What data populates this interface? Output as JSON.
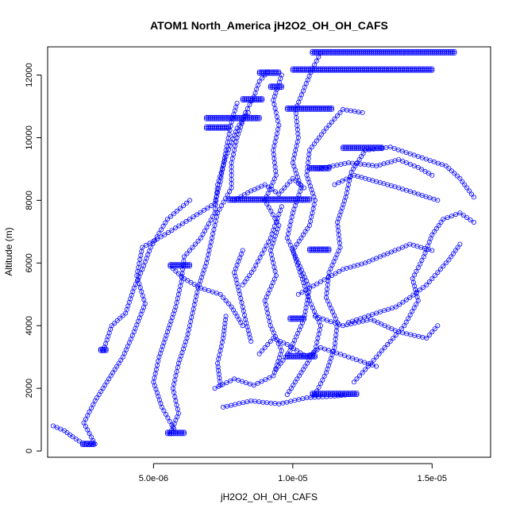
{
  "chart_data": {
    "type": "scatter",
    "title": "ATOM1 North_America jH2O2_OH_OH_CAFS",
    "xlabel": "jH2O2_OH_OH_CAFS",
    "ylabel": "Altitude (m)",
    "xlim": [
      1.2e-06,
      1.71e-05
    ],
    "ylim": [
      -200,
      12900
    ],
    "x_ticks": [
      {
        "value": 5e-06,
        "label": "5.0e-06"
      },
      {
        "value": 1e-05,
        "label": "1.0e-05"
      },
      {
        "value": 1.5e-05,
        "label": "1.5e-05"
      }
    ],
    "y_ticks": [
      {
        "value": 0,
        "label": "0"
      },
      {
        "value": 2000,
        "label": "2000"
      },
      {
        "value": 4000,
        "label": "4000"
      },
      {
        "value": 6000,
        "label": "6000"
      },
      {
        "value": 8000,
        "label": "8000"
      },
      {
        "value": 10000,
        "label": "10000"
      },
      {
        "value": 12000,
        "label": "12000"
      }
    ],
    "marker": "open-circle",
    "color": "#0000ff",
    "connect_points": true,
    "grid": false,
    "profiles": [
      {
        "points": [
          [
            1.4e-06,
            800
          ],
          [
            1.8e-06,
            650
          ],
          [
            2.1e-06,
            450
          ],
          [
            2.45e-06,
            250
          ],
          [
            2.9e-06,
            220
          ],
          [
            2.5e-06,
            900
          ],
          [
            2.9e-06,
            1600
          ],
          [
            3.4e-06,
            2300
          ],
          [
            3.9e-06,
            3000
          ],
          [
            4.3e-06,
            3800
          ],
          [
            4.7e-06,
            4700
          ],
          [
            4.4e-06,
            5600
          ],
          [
            4.6e-06,
            6500
          ],
          [
            5.4e-06,
            6900
          ],
          [
            6.3e-06,
            7400
          ],
          [
            7.2e-06,
            7900
          ],
          [
            7.4e-06,
            8600
          ],
          [
            7.6e-06,
            9600
          ],
          [
            7.8e-06,
            10500
          ],
          [
            8e-06,
            11100
          ]
        ]
      },
      {
        "points": [
          [
            5.6e-06,
            550
          ],
          [
            5.9e-06,
            1200
          ],
          [
            5.7e-06,
            2000
          ],
          [
            5.9e-06,
            2800
          ],
          [
            6.2e-06,
            3600
          ],
          [
            6.4e-06,
            4400
          ],
          [
            6.6e-06,
            5200
          ],
          [
            6.9e-06,
            6000
          ],
          [
            7.1e-06,
            6800
          ],
          [
            7.3e-06,
            7600
          ],
          [
            7.8e-06,
            8400
          ],
          [
            7.8e-06,
            9200
          ],
          [
            8e-06,
            10000
          ],
          [
            8.3e-06,
            10800
          ],
          [
            8.6e-06,
            11300
          ],
          [
            8.8e-06,
            11800
          ],
          [
            9.1e-06,
            12100
          ]
        ]
      },
      {
        "points": [
          [
            5.8e-06,
            600
          ],
          [
            5.3e-06,
            1400
          ],
          [
            5e-06,
            2200
          ],
          [
            5.2e-06,
            3000
          ],
          [
            5.5e-06,
            3800
          ],
          [
            5.8e-06,
            4600
          ],
          [
            6e-06,
            5400
          ],
          [
            6.1e-06,
            6200
          ],
          [
            6.7e-06,
            6800
          ],
          [
            7.2e-06,
            7600
          ],
          [
            7.3e-06,
            8500
          ],
          [
            7.6e-06,
            9400
          ],
          [
            8e-06,
            10300
          ],
          [
            8.4e-06,
            10800
          ]
        ]
      },
      {
        "points": [
          [
            3.2e-06,
            3200
          ],
          [
            3.5e-06,
            4000
          ],
          [
            4e-06,
            4400
          ],
          [
            4.3e-06,
            5200
          ],
          [
            4.6e-06,
            5800
          ],
          [
            4.9e-06,
            6500
          ],
          [
            5.5e-06,
            7400
          ],
          [
            6.3e-06,
            8000
          ]
        ]
      },
      {
        "points": [
          [
            7.2e-06,
            2000
          ],
          [
            7.9e-06,
            2300
          ],
          [
            8.6e-06,
            2100
          ],
          [
            9.3e-06,
            2400
          ],
          [
            9.6e-06,
            3200
          ],
          [
            9.2e-06,
            4000
          ],
          [
            9e-06,
            4800
          ],
          [
            9.4e-06,
            5600
          ],
          [
            9.2e-06,
            6400
          ],
          [
            9.5e-06,
            7200
          ],
          [
            9e-06,
            8000
          ],
          [
            9.4e-06,
            8800
          ],
          [
            9.3e-06,
            9600
          ],
          [
            9.5e-06,
            10400
          ],
          [
            9.3e-06,
            11200
          ],
          [
            9.6e-06,
            12000
          ]
        ]
      },
      {
        "points": [
          [
            9.4e-06,
            2600
          ],
          [
            9.9e-06,
            3200
          ],
          [
            1.04e-05,
            4200
          ],
          [
            1.06e-05,
            5200
          ],
          [
            1.02e-05,
            6000
          ],
          [
            9.8e-06,
            6800
          ],
          [
            1e-05,
            7600
          ],
          [
            1.03e-05,
            8400
          ],
          [
            1e-05,
            9200
          ],
          [
            1.02e-05,
            10000
          ],
          [
            1.01e-05,
            10900
          ],
          [
            1.07e-05,
            12200
          ],
          [
            1.1e-05,
            12700
          ]
        ]
      },
      {
        "points": [
          [
            9.8e-06,
            1800
          ],
          [
            1.03e-05,
            2500
          ],
          [
            1.08e-05,
            3200
          ],
          [
            1.1e-05,
            4000
          ],
          [
            1.06e-05,
            4800
          ],
          [
            1.03e-05,
            5600
          ],
          [
            1e-05,
            6400
          ],
          [
            1.06e-05,
            7200
          ],
          [
            1.08e-05,
            8000
          ],
          [
            1.05e-05,
            8800
          ],
          [
            1.06e-05,
            9600
          ],
          [
            1.12e-05,
            10300
          ],
          [
            1.18e-05,
            10900
          ],
          [
            1.25e-05,
            10800
          ]
        ]
      },
      {
        "points": [
          [
            1.08e-05,
            1800
          ],
          [
            1.12e-05,
            2500
          ],
          [
            1.15e-05,
            3300
          ],
          [
            1.16e-05,
            4100
          ],
          [
            1.12e-05,
            4900
          ],
          [
            1.13e-05,
            5700
          ],
          [
            1.17e-05,
            6500
          ],
          [
            1.16e-05,
            7300
          ],
          [
            1.19e-05,
            8100
          ],
          [
            1.21e-05,
            8900
          ],
          [
            1.26e-05,
            9600
          ],
          [
            1.35e-05,
            9700
          ],
          [
            1.45e-05,
            9400
          ],
          [
            1.55e-05,
            9100
          ],
          [
            1.6e-05,
            8700
          ],
          [
            1.65e-05,
            8100
          ]
        ]
      },
      {
        "points": [
          [
            1.22e-05,
            2200
          ],
          [
            1.28e-05,
            2800
          ],
          [
            1.35e-05,
            3500
          ],
          [
            1.4e-05,
            4000
          ],
          [
            1.45e-05,
            4800
          ],
          [
            1.43e-05,
            5500
          ],
          [
            1.47e-05,
            6200
          ],
          [
            1.5e-05,
            6900
          ],
          [
            1.54e-05,
            7400
          ],
          [
            1.6e-05,
            7600
          ],
          [
            1.65e-05,
            7300
          ]
        ]
      },
      {
        "points": [
          [
            1.2e-05,
            4100
          ],
          [
            1.3e-05,
            4400
          ],
          [
            1.37e-05,
            4600
          ],
          [
            1.42e-05,
            4900
          ],
          [
            1.48e-05,
            5300
          ],
          [
            1.52e-05,
            5700
          ],
          [
            1.56e-05,
            6100
          ],
          [
            1.6e-05,
            6600
          ]
        ]
      },
      {
        "points": [
          [
            1.08e-05,
            4300
          ],
          [
            1.18e-05,
            4000
          ],
          [
            1.28e-05,
            4200
          ],
          [
            1.38e-05,
            3800
          ],
          [
            1.48e-05,
            3600
          ],
          [
            1.52e-05,
            4000
          ]
        ]
      },
      {
        "points": [
          [
            8.8e-06,
            3100
          ],
          [
            9.3e-06,
            3600
          ],
          [
            9.8e-06,
            3400
          ],
          [
            1.05e-05,
            3000
          ],
          [
            1.1e-05,
            3300
          ],
          [
            1.2e-05,
            3000
          ],
          [
            1.3e-05,
            2700
          ]
        ]
      },
      {
        "points": [
          [
            7.5e-06,
            1400
          ],
          [
            8.5e-06,
            1600
          ],
          [
            9.5e-06,
            1500
          ],
          [
            1.05e-05,
            1700
          ],
          [
            1.15e-05,
            1750
          ],
          [
            1.2e-05,
            1800
          ]
        ]
      },
      {
        "points": [
          [
            1.02e-05,
            5000
          ],
          [
            1.1e-05,
            5400
          ],
          [
            1.18e-05,
            5800
          ],
          [
            1.26e-05,
            6000
          ],
          [
            1.34e-05,
            6300
          ],
          [
            1.42e-05,
            6600
          ],
          [
            1.5e-05,
            6400
          ]
        ]
      },
      {
        "points": [
          [
            1.15e-05,
            8500
          ],
          [
            1.22e-05,
            8800
          ],
          [
            1.3e-05,
            8600
          ],
          [
            1.38e-05,
            8400
          ],
          [
            1.45e-05,
            8200
          ],
          [
            1.52e-05,
            8000
          ]
        ]
      },
      {
        "points": [
          [
            1.09e-05,
            9000
          ],
          [
            1.2e-05,
            9200
          ],
          [
            1.3e-05,
            9100
          ],
          [
            1.38e-05,
            9300
          ],
          [
            1.45e-05,
            9050
          ],
          [
            1.5e-05,
            8800
          ]
        ]
      },
      {
        "points": [
          [
            7.9e-06,
            8000
          ],
          [
            8.5e-06,
            8300
          ],
          [
            9e-06,
            8500
          ],
          [
            9.5e-06,
            8200
          ],
          [
            1e-05,
            8700
          ],
          [
            1.04e-05,
            8400
          ]
        ]
      },
      {
        "points": [
          [
            8.2e-06,
            5300
          ],
          [
            8.6e-06,
            5800
          ],
          [
            8.9e-06,
            6300
          ],
          [
            9.2e-06,
            6800
          ],
          [
            9.4e-06,
            7300
          ],
          [
            9.6e-06,
            7800
          ]
        ]
      },
      {
        "points": [
          [
            8.5e-06,
            3500
          ],
          [
            8.3e-06,
            4200
          ],
          [
            8.1e-06,
            5000
          ],
          [
            7.9e-06,
            5700
          ],
          [
            8.2e-06,
            6400
          ]
        ]
      },
      {
        "points": [
          [
            5.6e-06,
            5900
          ],
          [
            6.1e-06,
            5500
          ],
          [
            6.7e-06,
            5200
          ],
          [
            7.4e-06,
            5000
          ],
          [
            7.8e-06,
            4600
          ],
          [
            8.2e-06,
            4000
          ]
        ]
      },
      {
        "points": [
          [
            7.4e-06,
            2100
          ],
          [
            7.3e-06,
            2800
          ],
          [
            7.5e-06,
            3600
          ],
          [
            7.6e-06,
            4300
          ]
        ]
      }
    ],
    "bands": [
      {
        "y": 200,
        "x_from": 2.45e-06,
        "x_to": 2.85e-06
      },
      {
        "y": 550,
        "x_from": 5.5e-06,
        "x_to": 6.1e-06
      },
      {
        "y": 1800,
        "x_from": 1.07e-05,
        "x_to": 1.23e-05
      },
      {
        "y": 3000,
        "x_from": 9.8e-06,
        "x_to": 1.08e-05
      },
      {
        "y": 3200,
        "x_from": 3.1e-06,
        "x_to": 3.3e-06
      },
      {
        "y": 4200,
        "x_from": 9.9e-06,
        "x_to": 1.04e-05
      },
      {
        "y": 5900,
        "x_from": 5.6e-06,
        "x_to": 6.3e-06
      },
      {
        "y": 6400,
        "x_from": 1.06e-05,
        "x_to": 1.13e-05
      },
      {
        "y": 8000,
        "x_from": 7.7e-06,
        "x_to": 1.06e-05
      },
      {
        "y": 9000,
        "x_from": 1.06e-05,
        "x_to": 1.13e-05
      },
      {
        "y": 9650,
        "x_from": 1.18e-05,
        "x_to": 1.32e-05
      },
      {
        "y": 10300,
        "x_from": 6.9e-06,
        "x_to": 7.7e-06
      },
      {
        "y": 10600,
        "x_from": 6.9e-06,
        "x_to": 8.8e-06
      },
      {
        "y": 10900,
        "x_from": 9.8e-06,
        "x_to": 1.14e-05
      },
      {
        "y": 11200,
        "x_from": 8.2e-06,
        "x_to": 8.9e-06
      },
      {
        "y": 11600,
        "x_from": 9.2e-06,
        "x_to": 9.6e-06
      },
      {
        "y": 12050,
        "x_from": 8.8e-06,
        "x_to": 9.5e-06
      },
      {
        "y": 12150,
        "x_from": 1e-05,
        "x_to": 1.5e-05
      },
      {
        "y": 12700,
        "x_from": 1.07e-05,
        "x_to": 1.58e-05
      }
    ]
  }
}
